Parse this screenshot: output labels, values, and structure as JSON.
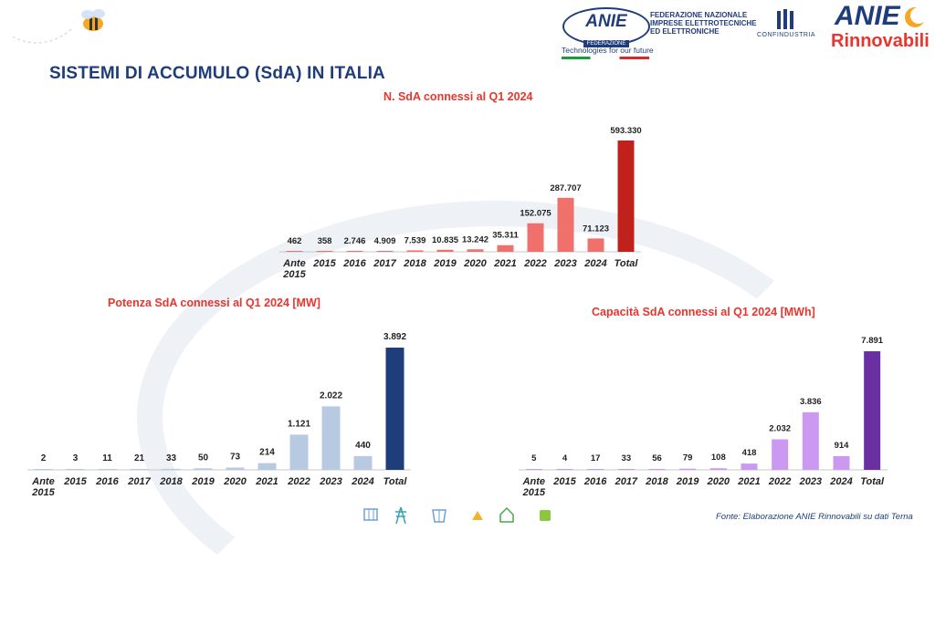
{
  "page": {
    "title": "SISTEMI DI ACCUMULO (SdA) IN ITALIA",
    "source": "Fonte: Elaborazione ANIE Rinnovabili su dati Terna"
  },
  "header": {
    "anie_logo": "ANIE",
    "anie_sub": "FEDERAZIONE",
    "federation_text": "FEDERAZIONE NAZIONALE\nIMPRESE ELETTROTECNICHE\nED ELETTRONICHE",
    "tagline": "Technologies for our future",
    "confindustria": "CONFINDUSTRIA",
    "rinnovabili_top": "ANIE",
    "rinnovabili_bottom": "Rinnovabili"
  },
  "chart_data": [
    {
      "type": "bar",
      "title": "N. SdA connessi al Q1 2024",
      "categories": [
        "Ante 2015",
        "2015",
        "2016",
        "2017",
        "2018",
        "2019",
        "2020",
        "2021",
        "2022",
        "2023",
        "2024",
        "Total"
      ],
      "values": [
        462,
        358,
        2746,
        4909,
        7539,
        10835,
        13242,
        35311,
        152075,
        287707,
        71123,
        593330
      ],
      "labels": [
        "462",
        "358",
        "2.746",
        "4.909",
        "7.539",
        "10.835",
        "13.242",
        "35.311",
        "152.075",
        "287.707",
        "71.123",
        "593.330"
      ],
      "colors": {
        "bar": "#f0706c",
        "total": "#c0221b"
      }
    },
    {
      "type": "bar",
      "title": "Potenza SdA connessi al Q1 2024 [MW]",
      "categories": [
        "Ante 2015",
        "2015",
        "2016",
        "2017",
        "2018",
        "2019",
        "2020",
        "2021",
        "2022",
        "2023",
        "2024",
        "Total"
      ],
      "values": [
        2,
        3,
        11,
        21,
        33,
        50,
        73,
        214,
        1121,
        2022,
        440,
        3892
      ],
      "labels": [
        "2",
        "3",
        "11",
        "21",
        "33",
        "50",
        "73",
        "214",
        "1.121",
        "2.022",
        "440",
        "3.892"
      ],
      "colors": {
        "bar": "#b8c9e2",
        "total": "#1f3d7a"
      }
    },
    {
      "type": "bar",
      "title": "Capacità SdA connessi al Q1 2024 [MWh]",
      "categories": [
        "Ante 2015",
        "2015",
        "2016",
        "2017",
        "2018",
        "2019",
        "2020",
        "2021",
        "2022",
        "2023",
        "2024",
        "Total"
      ],
      "values": [
        5,
        4,
        17,
        33,
        56,
        79,
        108,
        418,
        2032,
        3836,
        914,
        7891
      ],
      "labels": [
        "5",
        "4",
        "17",
        "33",
        "56",
        "79",
        "108",
        "418",
        "2.032",
        "3.836",
        "914",
        "7.891"
      ],
      "colors": {
        "bar": "#cc99f2",
        "total": "#6a2fa0"
      }
    }
  ]
}
